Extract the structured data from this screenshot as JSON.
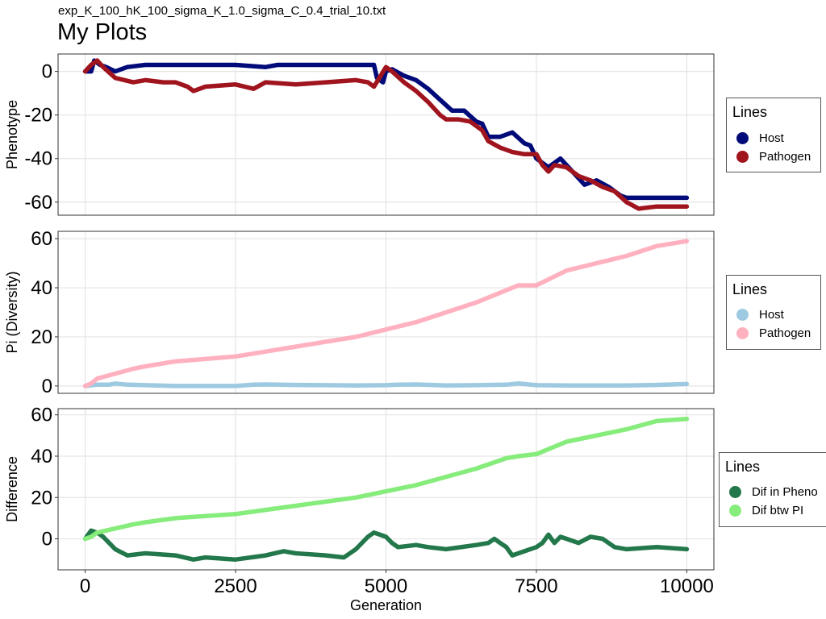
{
  "subtitle": "exp_K_100_hK_100_sigma_K_1.0_sigma_C_0.4_trial_10.txt",
  "title": "My Plots",
  "x_axis": {
    "label": "Generation",
    "ticks": [
      0,
      2500,
      5000,
      7500,
      10000
    ],
    "tick_labels": [
      "0",
      "2500",
      "5000",
      "7500",
      "10000"
    ],
    "range": [
      -450,
      10450
    ]
  },
  "chart_data": [
    {
      "type": "line",
      "ylabel": "Phenotype",
      "ylim": [
        -66,
        8
      ],
      "yticks": [
        0,
        -20,
        -40,
        -60
      ],
      "ytick_labels": [
        "0",
        "-20",
        "-40",
        "-60"
      ],
      "grid": true,
      "legend_title": "Lines",
      "legend_placement": "right",
      "series": [
        {
          "name": "Host",
          "color": "#000a78",
          "x": [
            0,
            100,
            150,
            250,
            350,
            500,
            700,
            1000,
            1500,
            2000,
            2500,
            3000,
            3200,
            3500,
            4000,
            4500,
            4800,
            4850,
            4950,
            5000,
            5100,
            5300,
            5500,
            5700,
            5900,
            6100,
            6300,
            6500,
            6600,
            6700,
            6900,
            7100,
            7300,
            7400,
            7500,
            7700,
            7900,
            8100,
            8300,
            8500,
            8700,
            8900,
            9000,
            9300,
            9600,
            10000
          ],
          "y": [
            0,
            0,
            5,
            3,
            2,
            0,
            2,
            3,
            3,
            3,
            3,
            2,
            3,
            3,
            3,
            3,
            3,
            -3,
            -5,
            0,
            1,
            -2,
            -4,
            -8,
            -13,
            -18,
            -18,
            -23,
            -24,
            -30,
            -30,
            -28,
            -33,
            -34,
            -40,
            -44,
            -40,
            -46,
            -52,
            -50,
            -53,
            -57,
            -58,
            -58,
            -58,
            -58
          ]
        },
        {
          "name": "Pathogen",
          "color": "#a0141e",
          "x": [
            0,
            100,
            200,
            300,
            500,
            800,
            1000,
            1300,
            1500,
            1700,
            1800,
            2000,
            2500,
            2800,
            3000,
            3500,
            4000,
            4500,
            4700,
            4800,
            5000,
            5100,
            5300,
            5500,
            5700,
            5900,
            6000,
            6200,
            6400,
            6600,
            6700,
            6900,
            7100,
            7300,
            7500,
            7600,
            7700,
            7800,
            8000,
            8200,
            8400,
            8600,
            8800,
            9000,
            9200,
            9500,
            10000
          ],
          "y": [
            0,
            3,
            5,
            2,
            -3,
            -5,
            -4,
            -5,
            -5,
            -7,
            -9,
            -7,
            -6,
            -8,
            -5,
            -6,
            -5,
            -4,
            -5,
            -7,
            2,
            0,
            -5,
            -9,
            -14,
            -20,
            -22,
            -22,
            -23,
            -27,
            -32,
            -35,
            -37,
            -38,
            -38,
            -43,
            -46,
            -43,
            -44,
            -48,
            -50,
            -53,
            -55,
            -60,
            -63,
            -62,
            -62
          ]
        }
      ]
    },
    {
      "type": "line",
      "ylabel": "Pi (Diversity)",
      "ylim": [
        -3,
        63
      ],
      "yticks": [
        0,
        20,
        40,
        60
      ],
      "ytick_labels": [
        "0",
        "20",
        "40",
        "60"
      ],
      "grid": true,
      "legend_title": "Lines",
      "legend_placement": "right",
      "series": [
        {
          "name": "Host",
          "color": "#9ecae1",
          "x": [
            0,
            200,
            400,
            500,
            700,
            1000,
            1500,
            2000,
            2500,
            2800,
            3000,
            3500,
            4000,
            4500,
            5000,
            5200,
            5500,
            6000,
            6500,
            7000,
            7200,
            7500,
            8000,
            8500,
            9000,
            9500,
            10000
          ],
          "y": [
            0,
            0.5,
            0.5,
            1,
            0.5,
            0.3,
            0,
            0,
            0,
            0.5,
            0.6,
            0.4,
            0.3,
            0.2,
            0.3,
            0.5,
            0.6,
            0.2,
            0.3,
            0.5,
            1,
            0.3,
            0.2,
            0.2,
            0.2,
            0.4,
            0.8
          ]
        },
        {
          "name": "Pathogen",
          "color": "#ffb1c0",
          "x": [
            0,
            100,
            200,
            500,
            800,
            1000,
            1500,
            2000,
            2500,
            3000,
            3500,
            4000,
            4500,
            5000,
            5500,
            6000,
            6500,
            7000,
            7200,
            7500,
            8000,
            8500,
            9000,
            9500,
            10000
          ],
          "y": [
            0,
            1,
            3,
            5,
            7,
            8,
            10,
            11,
            12,
            14,
            16,
            18,
            20,
            23,
            26,
            30,
            34,
            39,
            41,
            41,
            47,
            50,
            53,
            57,
            59
          ]
        }
      ]
    },
    {
      "type": "line",
      "ylabel": "Difference",
      "ylim": [
        -15,
        63
      ],
      "yticks": [
        0,
        20,
        40,
        60
      ],
      "ytick_labels": [
        "0",
        "20",
        "40",
        "60"
      ],
      "grid": true,
      "legend_title": "Lines",
      "legend_placement": "right",
      "series": [
        {
          "name": "Dif in Pheno",
          "color": "#23784b",
          "x": [
            0,
            100,
            200,
            300,
            500,
            700,
            1000,
            1500,
            1800,
            2000,
            2500,
            3000,
            3300,
            3500,
            4000,
            4300,
            4500,
            4700,
            4800,
            4900,
            5000,
            5100,
            5200,
            5500,
            5700,
            6000,
            6500,
            6700,
            6800,
            6900,
            7000,
            7100,
            7300,
            7500,
            7600,
            7700,
            7800,
            7900,
            8000,
            8200,
            8400,
            8600,
            8800,
            9000,
            9500,
            10000
          ],
          "y": [
            0,
            4,
            3,
            1,
            -5,
            -8,
            -7,
            -8,
            -10,
            -9,
            -10,
            -8,
            -6,
            -7,
            -8,
            -9,
            -5,
            1,
            3,
            2,
            1,
            -2,
            -4,
            -3,
            -4,
            -5,
            -3,
            -2,
            0,
            -2,
            -4,
            -8,
            -6,
            -4,
            -2,
            2,
            -2,
            1,
            0,
            -2,
            1,
            0,
            -4,
            -5,
            -4,
            -5
          ]
        },
        {
          "name": "Dif btw PI",
          "color": "#86ec7b",
          "x": [
            0,
            100,
            200,
            500,
            800,
            1000,
            1500,
            2000,
            2500,
            3000,
            3500,
            4000,
            4500,
            5000,
            5500,
            6000,
            6500,
            7000,
            7200,
            7500,
            8000,
            8500,
            9000,
            9500,
            10000
          ],
          "y": [
            0,
            1,
            3,
            5,
            7,
            8,
            10,
            11,
            12,
            14,
            16,
            18,
            20,
            23,
            26,
            30,
            34,
            39,
            40,
            41,
            47,
            50,
            53,
            57,
            58
          ]
        }
      ]
    }
  ]
}
